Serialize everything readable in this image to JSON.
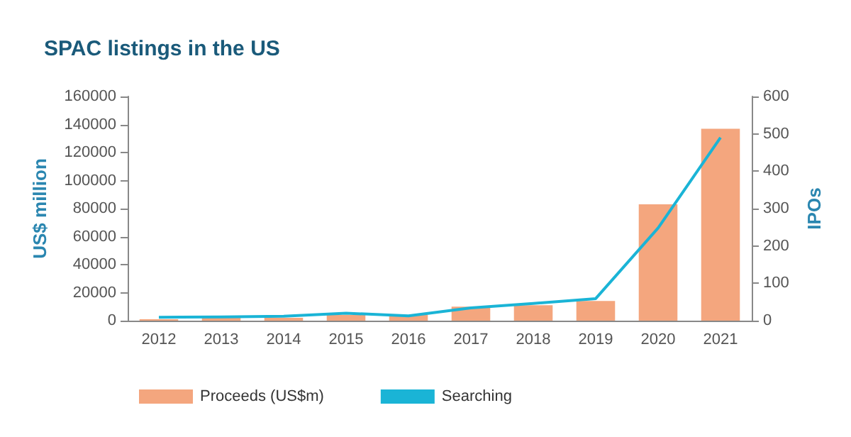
{
  "chart_data": {
    "type": "bar",
    "title": "SPAC listings in the US",
    "ylabel": "US$ million",
    "y2label": "IPOs",
    "categories": [
      "2012",
      "2013",
      "2014",
      "2015",
      "2016",
      "2017",
      "2018",
      "2019",
      "2020",
      "2021"
    ],
    "series": [
      {
        "name": "Proceeds (US$m)",
        "color": "#f4a67e",
        "values": [
          1000,
          2000,
          2000,
          4000,
          4000,
          10000,
          11000,
          14000,
          83000,
          137000
        ]
      },
      {
        "name": "Searching",
        "type": "line",
        "axis": "y2",
        "color": "#1ab4d6",
        "values": [
          9,
          10,
          12,
          20,
          13,
          34,
          46,
          59,
          248,
          490
        ]
      }
    ],
    "ylim": [
      0,
      160000
    ],
    "yticks": [
      0,
      20000,
      40000,
      60000,
      80000,
      100000,
      120000,
      140000,
      160000
    ],
    "y2lim": [
      0,
      600
    ],
    "y2ticks": [
      0,
      100,
      200,
      300,
      400,
      500,
      600
    ],
    "grid": false,
    "legend": "bottom",
    "marker": "none",
    "line_style": "solid"
  }
}
